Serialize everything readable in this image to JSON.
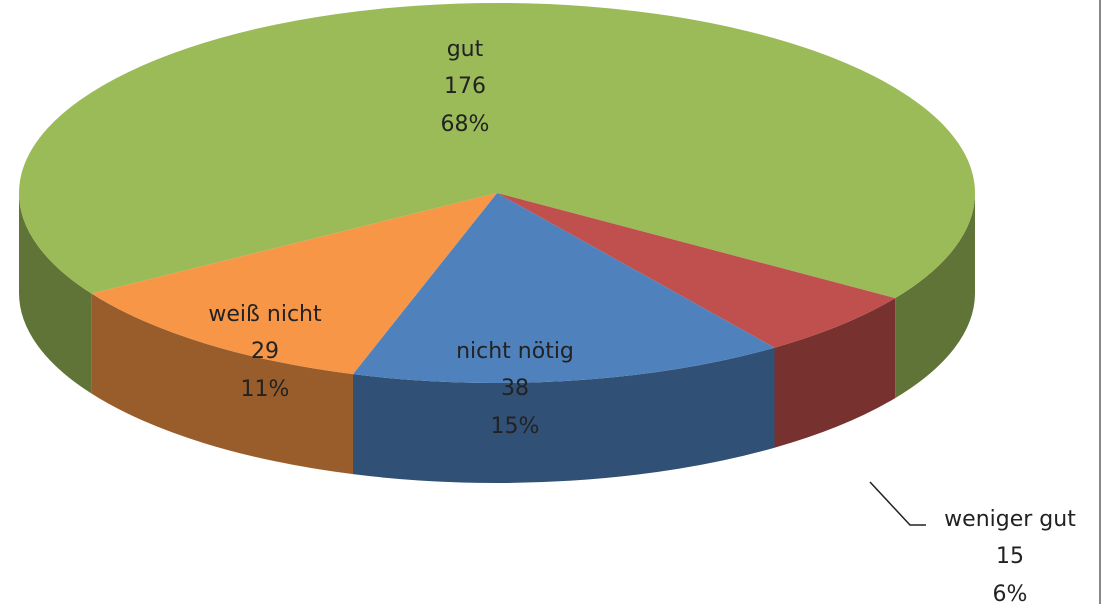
{
  "chart_data": {
    "type": "pie",
    "categories": [
      "gut",
      "weniger gut",
      "nicht nötig",
      "weiß nicht"
    ],
    "values": [
      176,
      15,
      38,
      29
    ],
    "percent_labels": [
      "68%",
      "6%",
      "15%",
      "11%"
    ],
    "colors": [
      "#9bbb59",
      "#c0504d",
      "#4f81bd",
      "#f79646"
    ],
    "three_d": true
  }
}
